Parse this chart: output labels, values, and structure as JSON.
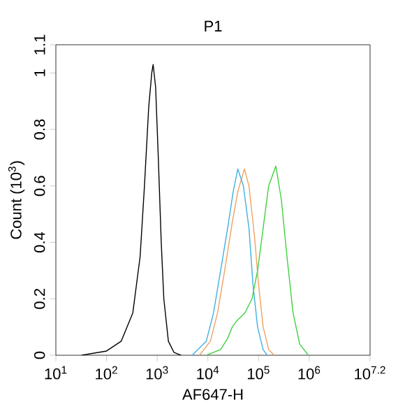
{
  "chart_data": {
    "type": "line",
    "title": "P1",
    "xlabel": "AF647-H",
    "ylabel": "Count (10$^{3}$)",
    "log": "x",
    "xlim": [
      10,
      15848932
    ],
    "ylim": [
      0,
      1.1
    ],
    "xticks": [
      {
        "value": 10,
        "label": "10$^{1}$"
      },
      {
        "value": 100,
        "label": "10$^{2}$"
      },
      {
        "value": 1000,
        "label": "10$^{3}$"
      },
      {
        "value": 10000,
        "label": "10$^{4}$"
      },
      {
        "value": 100000,
        "label": "10$^{5}$"
      },
      {
        "value": 1000000,
        "label": "10$^{6}$"
      },
      {
        "value": 15848932,
        "label": "10$^{7.2}$"
      }
    ],
    "yticks": [
      0,
      0.2,
      0.4,
      0.6,
      0.8,
      1,
      1.1
    ],
    "series": [
      {
        "color": "#000000",
        "x": [
          32,
          100,
          195,
          330,
          460,
          560,
          680,
          780,
          830,
          930,
          1050,
          1200,
          1350,
          1660,
          2140,
          2950
        ],
        "values": [
          0,
          0.015,
          0.05,
          0.15,
          0.35,
          0.6,
          0.88,
          1.0,
          1.03,
          0.95,
          0.7,
          0.4,
          0.2,
          0.05,
          0.01,
          0
        ]
      },
      {
        "color": "#f0a060",
        "x": [
          6800,
          11200,
          15500,
          21400,
          30200,
          38900,
          52500,
          64600,
          83200,
          100000,
          123000,
          158000,
          204000
        ],
        "values": [
          0,
          0.05,
          0.15,
          0.3,
          0.47,
          0.58,
          0.66,
          0.6,
          0.42,
          0.25,
          0.1,
          0.02,
          0
        ]
      },
      {
        "color": "#3fb0e0",
        "x": [
          4900,
          9300,
          12900,
          17800,
          24500,
          31600,
          38900,
          50100,
          64600,
          77600,
          95500,
          123000,
          148000
        ],
        "values": [
          0,
          0.05,
          0.15,
          0.3,
          0.45,
          0.58,
          0.66,
          0.6,
          0.45,
          0.25,
          0.1,
          0.02,
          0
        ]
      },
      {
        "color": "#40d040",
        "x": [
          9300,
          17800,
          24500,
          30200,
          36300,
          53700,
          74100,
          95500,
          123000,
          158000,
          219000,
          282000,
          363000,
          479000,
          646000,
          955000
        ],
        "values": [
          0,
          0.02,
          0.06,
          0.1,
          0.12,
          0.15,
          0.2,
          0.3,
          0.45,
          0.6,
          0.67,
          0.55,
          0.35,
          0.15,
          0.04,
          0
        ]
      }
    ]
  }
}
